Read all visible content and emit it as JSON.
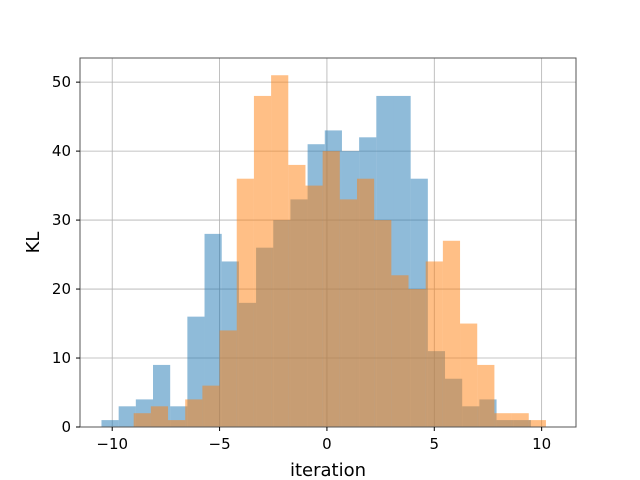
{
  "chart_data": {
    "type": "histogram",
    "title": "",
    "xlabel": "iteration",
    "ylabel": "KL",
    "xlim": [
      -11.5,
      11.6
    ],
    "ylim": [
      0,
      53.5
    ],
    "xticks": [
      -10,
      -5,
      0,
      5,
      10
    ],
    "yticks": [
      0,
      10,
      20,
      30,
      40,
      50
    ],
    "grid": true,
    "legend": "none",
    "series": [
      {
        "color": "#1f77b4",
        "alpha": 0.5,
        "bin_edges": [
          -10.5,
          -9.7,
          -8.9,
          -8.1,
          -7.3,
          -6.5,
          -5.7,
          -4.9,
          -4.1,
          -3.3,
          -2.5,
          -1.7,
          -0.9,
          -0.1,
          0.7,
          1.5,
          2.3,
          3.1,
          3.9,
          4.7,
          5.5,
          6.3,
          7.1,
          7.9,
          8.7,
          9.5
        ],
        "counts": [
          1,
          3,
          4,
          9,
          3,
          16,
          28,
          24,
          18,
          26,
          30,
          33,
          41,
          43,
          40,
          42,
          48,
          48,
          36,
          11,
          7,
          3,
          4,
          1,
          1
        ]
      },
      {
        "color": "#ff7f0e",
        "alpha": 0.5,
        "bin_edges": [
          -9.0,
          -8.2,
          -7.4,
          -6.6,
          -5.8,
          -5.0,
          -4.2,
          -3.4,
          -2.6,
          -1.8,
          -1.0,
          -0.2,
          0.6,
          1.4,
          2.2,
          3.0,
          3.8,
          4.6,
          5.4,
          6.2,
          7.0,
          7.8,
          8.6,
          9.4,
          10.2,
          11.0
        ],
        "counts": [
          2,
          3,
          1,
          4,
          6,
          14,
          36,
          48,
          51,
          38,
          35,
          40,
          33,
          36,
          30,
          22,
          20,
          24,
          27,
          15,
          9,
          2,
          2,
          1,
          0
        ]
      }
    ]
  }
}
